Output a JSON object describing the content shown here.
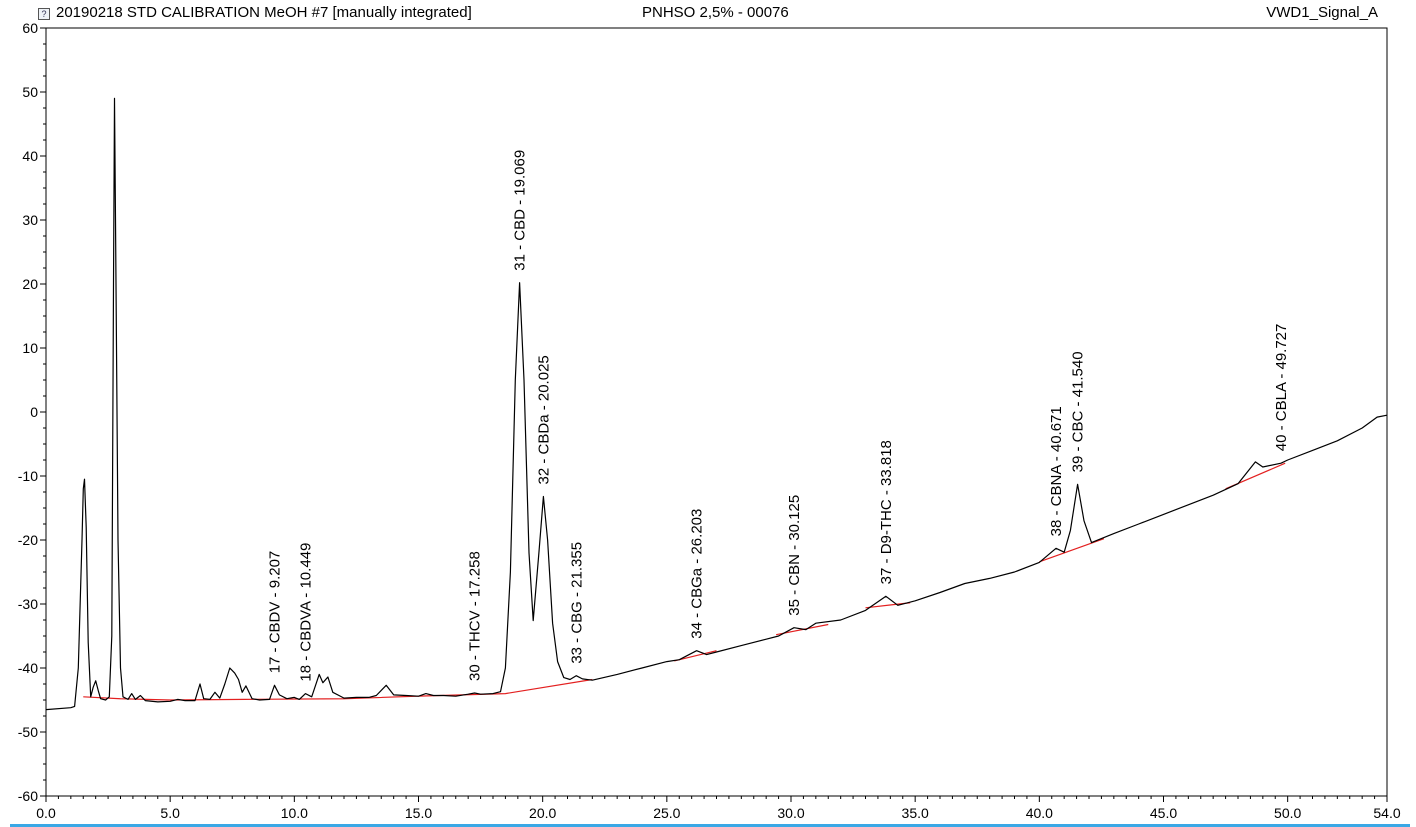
{
  "header": {
    "title": "20190218 STD CALIBRATION MeOH #7 [manually integrated]",
    "center": "PNHSO 2,5% - 00076",
    "right": "VWD1_Signal_A",
    "icon": "document-icon"
  },
  "colors": {
    "trace": "#000000",
    "baseline": "#e32020",
    "peak_fill": "#c000c0",
    "accent_line": "#3aa8e6"
  },
  "chart_data": {
    "type": "line",
    "title": "",
    "xlabel": "",
    "ylabel": "",
    "xlim": [
      0.0,
      54.0
    ],
    "ylim": [
      -60,
      60
    ],
    "x_ticks": [
      0.0,
      5.0,
      10.0,
      15.0,
      20.0,
      25.0,
      30.0,
      35.0,
      40.0,
      45.0,
      50.0,
      54.0
    ],
    "x_tick_labels": [
      "0.0",
      "5.0",
      "10.0",
      "15.0",
      "20.0",
      "25.0",
      "30.0",
      "35.0",
      "40.0",
      "45.0",
      "50.0",
      "54.0"
    ],
    "y_ticks": [
      -60,
      -50,
      -40,
      -30,
      -20,
      -10,
      0,
      10,
      20,
      30,
      40,
      50,
      60
    ],
    "y_tick_labels": [
      "-60",
      "-50",
      "-40",
      "-30",
      "-20",
      "-10",
      "0",
      "10",
      "20",
      "30",
      "40",
      "50",
      "60"
    ],
    "grid": false,
    "signal": [
      [
        0.0,
        -46.5
      ],
      [
        1.0,
        -46.2
      ],
      [
        1.15,
        -46.0
      ],
      [
        1.3,
        -40
      ],
      [
        1.45,
        -20
      ],
      [
        1.5,
        -12
      ],
      [
        1.55,
        -10.5
      ],
      [
        1.62,
        -18
      ],
      [
        1.7,
        -36
      ],
      [
        1.8,
        -44.5
      ],
      [
        1.9,
        -43.0
      ],
      [
        2.0,
        -42.0
      ],
      [
        2.1,
        -43.5
      ],
      [
        2.2,
        -44.8
      ],
      [
        2.4,
        -45.0
      ],
      [
        2.55,
        -44.5
      ],
      [
        2.65,
        -35
      ],
      [
        2.72,
        20
      ],
      [
        2.76,
        49.0
      ],
      [
        2.8,
        30
      ],
      [
        2.9,
        -20
      ],
      [
        3.0,
        -40
      ],
      [
        3.1,
        -44.5
      ],
      [
        3.3,
        -44.9
      ],
      [
        3.45,
        -44.0
      ],
      [
        3.6,
        -44.9
      ],
      [
        3.8,
        -44.3
      ],
      [
        4.0,
        -45.1
      ],
      [
        4.5,
        -45.3
      ],
      [
        5.0,
        -45.2
      ],
      [
        5.3,
        -44.9
      ],
      [
        5.6,
        -45.1
      ],
      [
        6.0,
        -45.1
      ],
      [
        6.2,
        -42.5
      ],
      [
        6.35,
        -44.8
      ],
      [
        6.6,
        -44.9
      ],
      [
        6.8,
        -43.8
      ],
      [
        7.0,
        -44.7
      ],
      [
        7.2,
        -42.5
      ],
      [
        7.4,
        -40.0
      ],
      [
        7.6,
        -40.8
      ],
      [
        7.75,
        -41.8
      ],
      [
        7.9,
        -43.8
      ],
      [
        8.05,
        -42.8
      ],
      [
        8.3,
        -44.8
      ],
      [
        8.6,
        -45.0
      ],
      [
        9.0,
        -44.9
      ],
      [
        9.2,
        -42.7
      ],
      [
        9.4,
        -44.2
      ],
      [
        9.7,
        -44.8
      ],
      [
        10.0,
        -44.6
      ],
      [
        10.2,
        -44.9
      ],
      [
        10.45,
        -44.0
      ],
      [
        10.7,
        -44.5
      ],
      [
        11.0,
        -41.0
      ],
      [
        11.15,
        -42.3
      ],
      [
        11.35,
        -41.4
      ],
      [
        11.55,
        -43.8
      ],
      [
        11.8,
        -44.3
      ],
      [
        12.0,
        -44.7
      ],
      [
        12.5,
        -44.6
      ],
      [
        13.0,
        -44.6
      ],
      [
        13.3,
        -44.3
      ],
      [
        13.7,
        -42.7
      ],
      [
        14.0,
        -44.2
      ],
      [
        14.5,
        -44.3
      ],
      [
        15.0,
        -44.4
      ],
      [
        15.3,
        -44.0
      ],
      [
        15.6,
        -44.3
      ],
      [
        16.0,
        -44.3
      ],
      [
        16.5,
        -44.4
      ],
      [
        17.0,
        -44.1
      ],
      [
        17.26,
        -43.9
      ],
      [
        17.5,
        -44.1
      ],
      [
        18.0,
        -44.0
      ],
      [
        18.3,
        -43.7
      ],
      [
        18.5,
        -40.0
      ],
      [
        18.7,
        -25
      ],
      [
        18.9,
        5
      ],
      [
        19.07,
        20.2
      ],
      [
        19.25,
        5
      ],
      [
        19.45,
        -22
      ],
      [
        19.62,
        -32.6
      ],
      [
        19.85,
        -22
      ],
      [
        20.03,
        -13.2
      ],
      [
        20.2,
        -20
      ],
      [
        20.4,
        -33
      ],
      [
        20.6,
        -39
      ],
      [
        20.85,
        -41.5
      ],
      [
        21.1,
        -41.8
      ],
      [
        21.35,
        -41.2
      ],
      [
        21.6,
        -41.7
      ],
      [
        22.0,
        -41.9
      ],
      [
        23.0,
        -41.0
      ],
      [
        24.0,
        -40.0
      ],
      [
        25.0,
        -39.0
      ],
      [
        25.5,
        -38.7
      ],
      [
        26.2,
        -37.3
      ],
      [
        26.6,
        -37.9
      ],
      [
        27.0,
        -37.5
      ],
      [
        28.0,
        -36.5
      ],
      [
        29.0,
        -35.5
      ],
      [
        29.5,
        -35.0
      ],
      [
        30.12,
        -33.7
      ],
      [
        30.6,
        -34.0
      ],
      [
        31.0,
        -33.0
      ],
      [
        32.0,
        -32.5
      ],
      [
        33.0,
        -31.0
      ],
      [
        33.82,
        -28.8
      ],
      [
        34.3,
        -30.2
      ],
      [
        35.0,
        -29.5
      ],
      [
        36.0,
        -28.2
      ],
      [
        37.0,
        -26.8
      ],
      [
        38.0,
        -26.0
      ],
      [
        39.0,
        -25.0
      ],
      [
        40.0,
        -23.5
      ],
      [
        40.67,
        -21.3
      ],
      [
        41.0,
        -21.9
      ],
      [
        41.25,
        -18.5
      ],
      [
        41.54,
        -11.3
      ],
      [
        41.8,
        -17
      ],
      [
        42.1,
        -20.4
      ],
      [
        43.0,
        -19.0
      ],
      [
        44.0,
        -17.5
      ],
      [
        45.0,
        -16.0
      ],
      [
        46.0,
        -14.5
      ],
      [
        47.0,
        -13.0
      ],
      [
        48.0,
        -11.2
      ],
      [
        48.7,
        -7.8
      ],
      [
        49.0,
        -8.6
      ],
      [
        49.73,
        -8.0
      ],
      [
        50.0,
        -7.5
      ],
      [
        51.0,
        -6.0
      ],
      [
        52.0,
        -4.5
      ],
      [
        53.0,
        -2.5
      ],
      [
        53.6,
        -0.8
      ],
      [
        54.0,
        -0.5
      ]
    ],
    "baseline_segments": [
      [
        [
          1.5,
          -44.5
        ],
        [
          3.0,
          -44.8
        ],
        [
          5.0,
          -45.0
        ],
        [
          8.0,
          -44.9
        ],
        [
          12.0,
          -44.8
        ],
        [
          15.0,
          -44.4
        ],
        [
          18.5,
          -44.0
        ],
        [
          22.0,
          -41.8
        ]
      ],
      [
        [
          25.3,
          -38.9
        ],
        [
          27.0,
          -37.3
        ]
      ],
      [
        [
          29.4,
          -34.8
        ],
        [
          31.5,
          -33.2
        ]
      ],
      [
        [
          33.0,
          -30.6
        ],
        [
          34.8,
          -29.8
        ]
      ],
      [
        [
          40.0,
          -23.4
        ],
        [
          42.6,
          -19.8
        ]
      ],
      [
        [
          47.5,
          -12.0
        ],
        [
          49.9,
          -8.0
        ]
      ]
    ],
    "peaks": [
      {
        "label": "17 - CBDV - 9.207",
        "rt": 9.207,
        "y": -42.7
      },
      {
        "label": "18 - CBDVA - 10.449",
        "rt": 10.449,
        "y": -44.0
      },
      {
        "label": "30 - THCV - 17.258",
        "rt": 17.258,
        "y": -43.9
      },
      {
        "label": "31 - CBD - 19.069",
        "rt": 19.069,
        "y": 20.2
      },
      {
        "label": "32 - CBDa - 20.025",
        "rt": 20.025,
        "y": -13.2
      },
      {
        "label": "33 - CBG - 21.355",
        "rt": 21.355,
        "y": -41.2
      },
      {
        "label": "34 - CBGa - 26.203",
        "rt": 26.203,
        "y": -37.3
      },
      {
        "label": "35 - CBN - 30.125",
        "rt": 30.125,
        "y": -33.7
      },
      {
        "label": "37 - D9-THC - 33.818",
        "rt": 33.818,
        "y": -28.8
      },
      {
        "label": "38 - CBNA - 40.671",
        "rt": 40.671,
        "y": -21.3
      },
      {
        "label": "39 - CBC - 41.540",
        "rt": 41.54,
        "y": -11.3
      },
      {
        "label": "40 - CBLA - 49.727",
        "rt": 49.727,
        "y": -8.0
      }
    ]
  }
}
